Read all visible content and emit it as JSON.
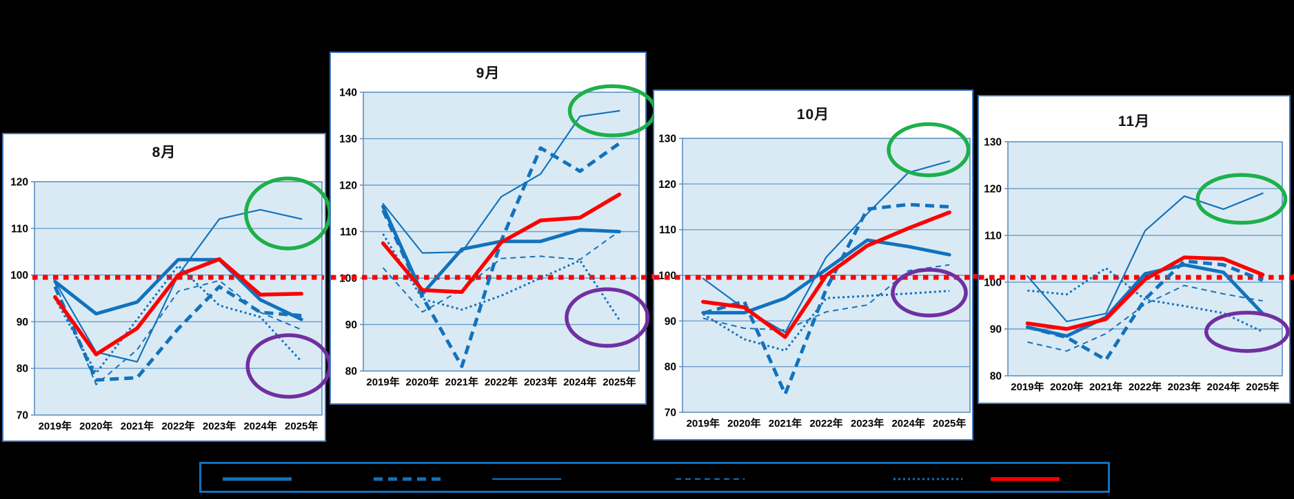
{
  "palette": {
    "blue": "#1272bd",
    "red": "#fe0000",
    "green": "#1db04b",
    "purple": "#7030a0",
    "plot_bg": "#daeaf4",
    "gridline": "#6d9eca",
    "plot_border": "#4f86c0",
    "panel_border": "#3f74bc",
    "background": "#000000",
    "text": "#000000"
  },
  "years": [
    "2019年",
    "2020年",
    "2021年",
    "2022年",
    "2023年",
    "2024年",
    "2025年"
  ],
  "reference_line": {
    "value": 100,
    "style": "red-dotted-horizontal",
    "spans": "all four charts continuously"
  },
  "legend": {
    "items": [
      {
        "icon": "thick-solid-blue-line",
        "style": "thick_solid",
        "label": ""
      },
      {
        "icon": "thick-dashed-blue-line",
        "style": "thick_dashed",
        "label": ""
      },
      {
        "icon": "thin-solid-blue-line",
        "style": "thin_solid",
        "label": ""
      },
      {
        "icon": "thin-dashed-blue-line",
        "style": "thin_dashed",
        "label": ""
      },
      {
        "icon": "dotted-blue-line",
        "style": "dotted",
        "label": ""
      },
      {
        "icon": "thick-solid-red-line",
        "style": "red_solid",
        "label": ""
      }
    ],
    "note": "labels blacked out / not visible"
  },
  "chart_data": [
    {
      "type": "line",
      "title": "8月",
      "ylim": [
        70,
        120
      ],
      "yticks": [
        70,
        80,
        90,
        100,
        110,
        120
      ],
      "categories": [
        "2019年",
        "2020年",
        "2021年",
        "2022年",
        "2023年",
        "2024年",
        "2025年"
      ],
      "series": [
        {
          "name": "thin-dashed-blue",
          "style": "thin_dashed",
          "values": [
            98.3,
            76.5,
            84.0,
            96.5,
            98.8,
            92.0,
            88.3
          ]
        },
        {
          "name": "dotted-blue",
          "style": "dotted",
          "values": [
            95.0,
            79.0,
            90.5,
            102.0,
            93.5,
            91.0,
            81.5
          ]
        },
        {
          "name": "thin-solid-blue",
          "style": "thin_solid",
          "values": [
            98.6,
            83.5,
            81.4,
            100.0,
            112.0,
            114.0,
            112.0
          ]
        },
        {
          "name": "thick-dashed-blue",
          "style": "thick_dashed",
          "values": [
            97.5,
            77.5,
            78.0,
            88.5,
            97.5,
            92.0,
            91.3
          ]
        },
        {
          "name": "thick-solid-blue",
          "style": "thick_solid",
          "values": [
            98.6,
            91.7,
            94.2,
            103.3,
            103.3,
            94.7,
            90.5
          ]
        },
        {
          "name": "thick-solid-red",
          "style": "red_solid",
          "values": [
            95.3,
            83.0,
            88.6,
            100.0,
            103.4,
            95.8,
            96.0
          ]
        }
      ],
      "annotations": [
        {
          "shape": "ellipse",
          "color": "green",
          "around": "thin-solid-blue line 2024-2025",
          "cx_year_index": 5.67,
          "cy_value": 113.2,
          "rx_year_units": 1.02,
          "ry_value_units": 7.5
        },
        {
          "shape": "ellipse",
          "color": "purple",
          "around": "dotted-blue line end 2025",
          "cx_year_index": 5.69,
          "cy_value": 80.5,
          "rx_year_units": 1.0,
          "ry_value_units": 6.6
        }
      ]
    },
    {
      "type": "line",
      "title": "9月",
      "ylim": [
        80,
        140
      ],
      "yticks": [
        80,
        90,
        100,
        110,
        120,
        130,
        140
      ],
      "categories": [
        "2019年",
        "2020年",
        "2021年",
        "2022年",
        "2023年",
        "2024年",
        "2025年"
      ],
      "series": [
        {
          "name": "thin-dashed-blue",
          "style": "thin_dashed",
          "values": [
            102.2,
            92.7,
            97.5,
            104.2,
            104.7,
            104.0,
            110.1
          ]
        },
        {
          "name": "dotted-blue",
          "style": "dotted",
          "values": [
            109.5,
            95.5,
            93.2,
            96.2,
            100.0,
            103.8,
            91.0
          ]
        },
        {
          "name": "thin-solid-blue",
          "style": "thin_solid",
          "values": [
            116.0,
            105.4,
            105.6,
            117.5,
            122.4,
            134.8,
            136.0
          ]
        },
        {
          "name": "thick-dashed-blue",
          "style": "thick_dashed",
          "values": [
            114.6,
            96.0,
            81.0,
            108.0,
            128.0,
            123.0,
            129.0
          ]
        },
        {
          "name": "thick-solid-blue",
          "style": "thick_solid",
          "values": [
            115.4,
            96.6,
            106.2,
            107.9,
            107.9,
            110.4,
            110.0
          ]
        },
        {
          "name": "thick-solid-red",
          "style": "red_solid",
          "values": [
            107.5,
            97.4,
            97.0,
            107.7,
            112.4,
            113.0,
            118.0
          ]
        }
      ],
      "annotations": [
        {
          "shape": "ellipse",
          "color": "green",
          "around": "thin-solid-blue line 2024-2025",
          "cx_year_index": 5.82,
          "cy_value": 136.0,
          "rx_year_units": 1.08,
          "ry_value_units": 5.3
        },
        {
          "shape": "ellipse",
          "color": "purple",
          "around": "dotted-blue line end 2025",
          "cx_year_index": 5.69,
          "cy_value": 91.5,
          "rx_year_units": 1.03,
          "ry_value_units": 6.1
        }
      ]
    },
    {
      "type": "line",
      "title": "10月",
      "ylim": [
        70,
        130
      ],
      "yticks": [
        70,
        80,
        90,
        100,
        110,
        120,
        130
      ],
      "categories": [
        "2019年",
        "2020年",
        "2021年",
        "2022年",
        "2023年",
        "2024年",
        "2025年"
      ],
      "series": [
        {
          "name": "thin-dashed-blue",
          "style": "thin_dashed",
          "values": [
            90.6,
            88.4,
            88.0,
            92.0,
            93.5,
            101.0,
            102.3
          ]
        },
        {
          "name": "dotted-blue",
          "style": "dotted",
          "values": [
            91.5,
            86.0,
            83.5,
            95.0,
            95.5,
            96.0,
            96.6
          ]
        },
        {
          "name": "thin-solid-blue",
          "style": "thin_solid",
          "values": [
            99.3,
            92.7,
            87.5,
            104.0,
            113.5,
            122.5,
            125.0
          ]
        },
        {
          "name": "thick-dashed-blue",
          "style": "thick_dashed",
          "values": [
            91.7,
            94.3,
            74.0,
            97.0,
            114.5,
            115.5,
            115.0
          ]
        },
        {
          "name": "thick-solid-blue",
          "style": "thick_solid",
          "values": [
            91.8,
            91.8,
            95.0,
            101.3,
            107.7,
            106.3,
            104.5
          ]
        },
        {
          "name": "thick-solid-red",
          "style": "red_solid",
          "values": [
            94.2,
            93.0,
            86.5,
            100.0,
            106.5,
            110.3,
            113.8
          ]
        }
      ],
      "annotations": [
        {
          "shape": "ellipse",
          "color": "green",
          "around": "thin-solid-blue line 2024-2025",
          "cx_year_index": 5.49,
          "cy_value": 127.5,
          "rx_year_units": 0.97,
          "ry_value_units": 5.6
        },
        {
          "shape": "ellipse",
          "color": "purple",
          "around": "dotted-blue line end 2025",
          "cx_year_index": 5.51,
          "cy_value": 96.2,
          "rx_year_units": 0.89,
          "ry_value_units": 5.0
        }
      ]
    },
    {
      "type": "line",
      "title": "11月",
      "ylim": [
        80,
        130
      ],
      "yticks": [
        80,
        90,
        100,
        110,
        120,
        130
      ],
      "categories": [
        "2019年",
        "2020年",
        "2021年",
        "2022年",
        "2023年",
        "2024年",
        "2025年"
      ],
      "series": [
        {
          "name": "thin-dashed-blue",
          "style": "thin_dashed",
          "values": [
            87.2,
            85.3,
            89.0,
            95.3,
            99.3,
            97.5,
            96.0
          ]
        },
        {
          "name": "dotted-blue",
          "style": "dotted",
          "values": [
            98.2,
            97.4,
            103.0,
            96.3,
            94.9,
            93.4,
            89.4
          ]
        },
        {
          "name": "thin-solid-blue",
          "style": "thin_solid",
          "values": [
            101.3,
            91.6,
            93.3,
            111.0,
            118.4,
            115.6,
            119.0
          ]
        },
        {
          "name": "thick-dashed-blue",
          "style": "thick_dashed",
          "values": [
            90.4,
            88.2,
            83.4,
            96.4,
            104.5,
            103.7,
            100.4
          ]
        },
        {
          "name": "thick-solid-blue",
          "style": "thick_solid",
          "values": [
            90.4,
            88.5,
            92.5,
            101.8,
            103.7,
            102.1,
            93.3
          ]
        },
        {
          "name": "thick-solid-red",
          "style": "red_solid",
          "values": [
            91.2,
            90.0,
            92.1,
            100.6,
            105.3,
            105.0,
            101.6
          ]
        }
      ],
      "annotations": [
        {
          "shape": "ellipse",
          "color": "green",
          "around": "thin-solid-blue line 2024-2025",
          "cx_year_index": 5.46,
          "cy_value": 117.8,
          "rx_year_units": 1.12,
          "ry_value_units": 5.1
        },
        {
          "shape": "ellipse",
          "color": "purple",
          "around": "dotted-blue line end 2025",
          "cx_year_index": 5.6,
          "cy_value": 89.4,
          "rx_year_units": 1.04,
          "ry_value_units": 4.1
        }
      ]
    }
  ]
}
